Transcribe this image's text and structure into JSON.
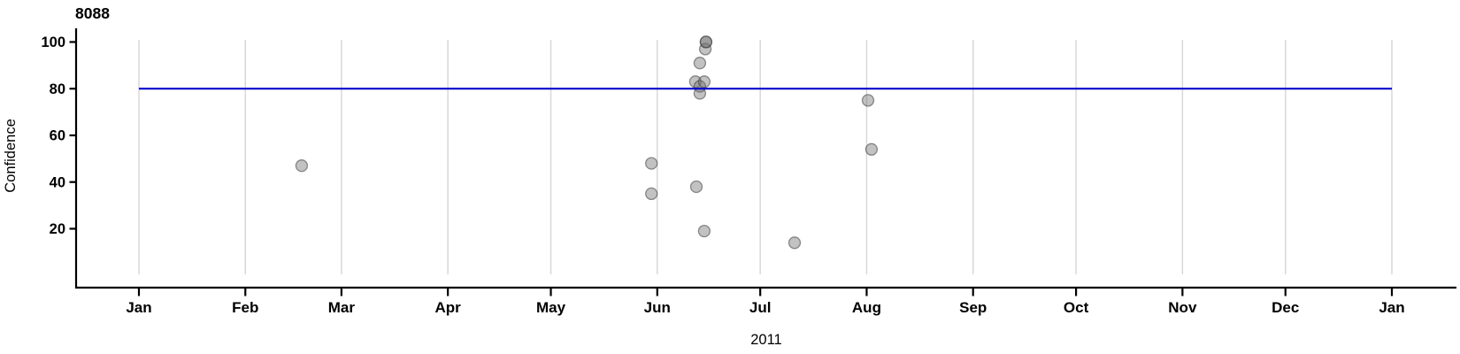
{
  "chart": {
    "title": "8088",
    "ylabel": "Confidence",
    "xlabel": "2011"
  },
  "chart_data": {
    "type": "scatter",
    "title": "8088",
    "xlabel": "2011",
    "ylabel": "Confidence",
    "legend": "none",
    "grid": "vertical-monthly-only",
    "x_axis": {
      "unit": "day-of-year 2011",
      "domain_days": [
        0,
        365
      ],
      "tick_days": [
        0,
        31,
        59,
        90,
        120,
        151,
        181,
        212,
        243,
        273,
        304,
        334,
        365
      ],
      "tick_labels": [
        "Jan",
        "Feb",
        "Mar",
        "Apr",
        "May",
        "Jun",
        "Jul",
        "Aug",
        "Sep",
        "Oct",
        "Nov",
        "Dec",
        "Jan"
      ]
    },
    "y_axis": {
      "ticks": [
        20,
        40,
        60,
        80,
        100
      ],
      "tick_labels": [
        "20",
        "40",
        "60",
        "80",
        "100"
      ],
      "domain": [
        0,
        105
      ]
    },
    "reference_line": {
      "y": 80
    },
    "points": [
      {
        "date": "Feb 17",
        "day": 47.4,
        "confidence": 47
      },
      {
        "date": "May 30",
        "day": 149.3,
        "confidence": 48
      },
      {
        "date": "May 30",
        "day": 149.3,
        "confidence": 35
      },
      {
        "date": "Jun 11",
        "day": 162.1,
        "confidence": 83
      },
      {
        "date": "Jun 12",
        "day": 162.4,
        "confidence": 38
      },
      {
        "date": "Jun 13",
        "day": 163.4,
        "confidence": 91
      },
      {
        "date": "Jun 13",
        "day": 163.4,
        "confidence": 81
      },
      {
        "date": "Jun 13",
        "day": 163.4,
        "confidence": 78
      },
      {
        "date": "Jun 14",
        "day": 164.7,
        "confidence": 83
      },
      {
        "date": "Jun 14",
        "day": 164.7,
        "confidence": 19
      },
      {
        "date": "Jun 15",
        "day": 165.0,
        "confidence": 97
      },
      {
        "date": "Jun 15",
        "day": 165.2,
        "confidence": 100
      },
      {
        "date": "Jun 15",
        "day": 165.2,
        "confidence": 100
      },
      {
        "date": "Jul 11",
        "day": 191.0,
        "confidence": 14
      },
      {
        "date": "Aug 1",
        "day": 212.4,
        "confidence": 75
      },
      {
        "date": "Aug 2",
        "day": 213.4,
        "confidence": 54
      }
    ],
    "colors": {
      "reference_line": "#0000CC",
      "gridline": "#D8D8D8",
      "axis": "#000000",
      "point_fill": "rgba(110,110,110,0.42)",
      "point_stroke": "rgba(60,60,60,0.55)"
    }
  }
}
